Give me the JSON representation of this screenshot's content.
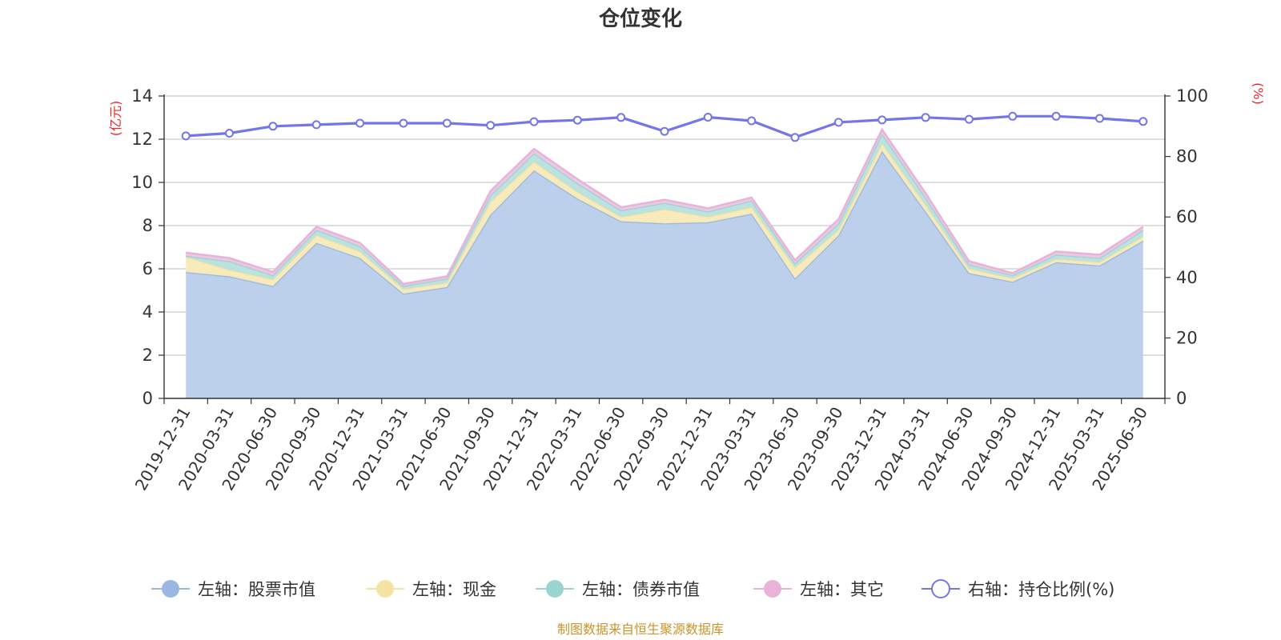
{
  "chart_data": {
    "type": "area",
    "title": "仓位变化",
    "left_axis": {
      "unit": "(亿元)",
      "range": [
        0,
        14
      ],
      "ticks": [
        0,
        2,
        4,
        6,
        8,
        10,
        12,
        14
      ]
    },
    "right_axis": {
      "unit": "(%)",
      "range": [
        0,
        100
      ],
      "ticks": [
        0,
        20,
        40,
        60,
        80,
        100
      ]
    },
    "categories": [
      "2019-12-31",
      "2020-03-31",
      "2020-06-30",
      "2020-09-30",
      "2020-12-31",
      "2021-03-31",
      "2021-06-30",
      "2021-09-30",
      "2021-12-31",
      "2022-03-31",
      "2022-06-30",
      "2022-09-30",
      "2022-12-31",
      "2023-03-31",
      "2023-06-30",
      "2023-09-30",
      "2023-12-31",
      "2024-03-31",
      "2024-06-30",
      "2024-09-30",
      "2024-12-31",
      "2025-03-31",
      "2025-06-30"
    ],
    "series": [
      {
        "name": "左轴：股票市值",
        "axis": "left",
        "color": "#9bb6e0",
        "fill": "#b9cdea",
        "values": [
          5.85,
          5.65,
          5.2,
          7.2,
          6.5,
          4.85,
          5.15,
          8.5,
          10.55,
          9.25,
          8.2,
          8.1,
          8.15,
          8.55,
          5.55,
          7.55,
          11.45,
          8.65,
          5.8,
          5.4,
          6.3,
          6.15,
          7.3
        ]
      },
      {
        "name": "左轴：现金",
        "axis": "left",
        "color": "#f5e3a3",
        "fill": "#f7eab8",
        "values": [
          0.7,
          0.3,
          0.3,
          0.35,
          0.3,
          0.2,
          0.2,
          0.6,
          0.4,
          0.3,
          0.2,
          0.65,
          0.25,
          0.3,
          0.5,
          0.25,
          0.35,
          0.3,
          0.2,
          0.15,
          0.15,
          0.15,
          0.2
        ]
      },
      {
        "name": "左轴：债券市值",
        "axis": "left",
        "color": "#9bd3d3",
        "fill": "#b7e0dc",
        "values": [
          0.05,
          0.4,
          0.2,
          0.25,
          0.25,
          0.15,
          0.2,
          0.3,
          0.4,
          0.4,
          0.3,
          0.3,
          0.25,
          0.3,
          0.2,
          0.3,
          0.45,
          0.35,
          0.2,
          0.15,
          0.2,
          0.2,
          0.3
        ]
      },
      {
        "name": "左轴：其它",
        "axis": "left",
        "color": "#e8b3d9",
        "fill": "#edc6e2",
        "values": [
          0.15,
          0.15,
          0.15,
          0.15,
          0.15,
          0.1,
          0.1,
          0.2,
          0.2,
          0.2,
          0.15,
          0.15,
          0.15,
          0.15,
          0.15,
          0.2,
          0.2,
          0.2,
          0.15,
          0.1,
          0.15,
          0.15,
          0.15
        ]
      },
      {
        "name": "右轴：持仓比例(%)",
        "axis": "right",
        "color": "#7376e8",
        "values": [
          86.8,
          87.7,
          90.0,
          90.5,
          91.0,
          91.0,
          91.0,
          90.3,
          91.5,
          92.0,
          92.9,
          88.3,
          93.0,
          91.8,
          86.3,
          91.3,
          92.1,
          92.9,
          92.3,
          93.3,
          93.3,
          92.6,
          91.6
        ]
      }
    ],
    "legend_position": "bottom-center",
    "grid": true
  },
  "colors": {
    "axis_unit": "#e8282b",
    "source": "#c9952a",
    "title": "#333333"
  },
  "source_note": "制图数据来自恒生聚源数据库"
}
